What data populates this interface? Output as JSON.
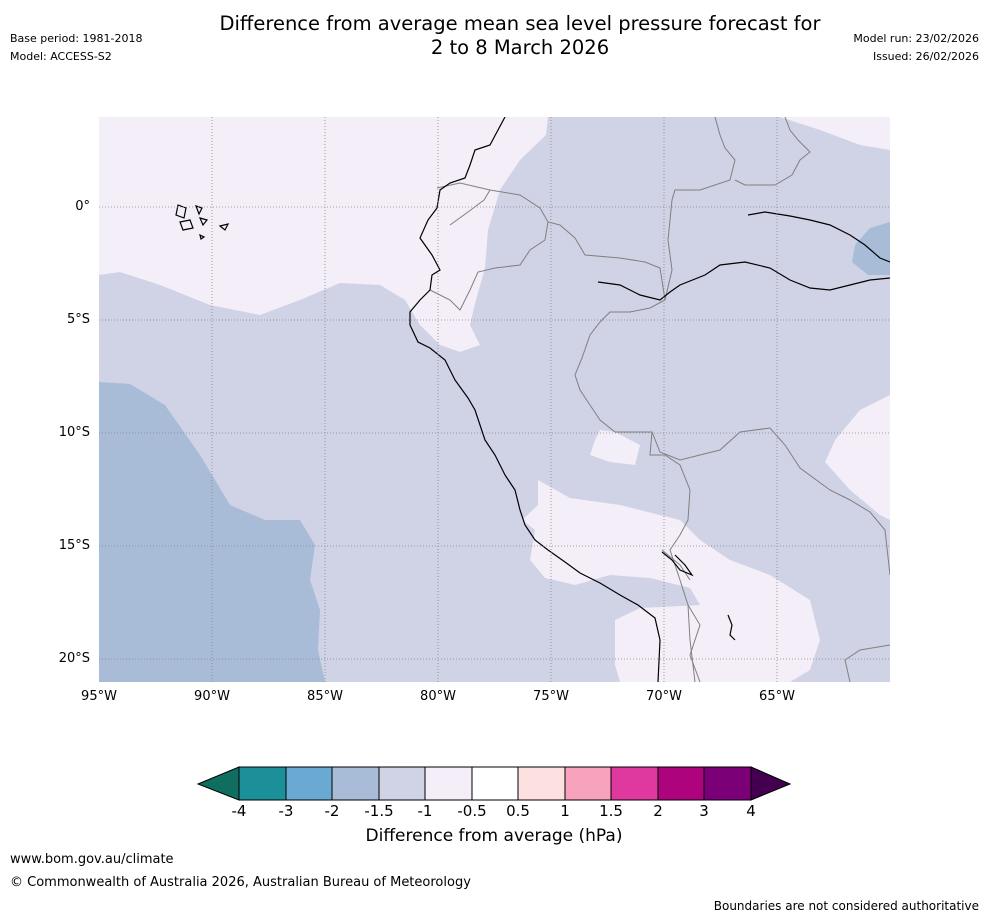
{
  "header": {
    "base_period": "Base period: 1981-2018",
    "model": "Model: ACCESS-S2",
    "title_line1": "Difference from average mean sea level pressure forecast for",
    "title_line2": "2 to 8 March 2026",
    "model_run": "Model run: 23/02/2026",
    "issued": "Issued: 26/02/2026"
  },
  "map": {
    "lat_labels": [
      "0°",
      "5°S",
      "10°S",
      "15°S",
      "20°S"
    ],
    "lon_labels": [
      "95°W",
      "90°W",
      "85°W",
      "80°W",
      "75°W",
      "70°W",
      "65°W"
    ],
    "colors": {
      "land_border": "#000000",
      "country_border": "#808080",
      "gridline": "#888888"
    }
  },
  "colorbar": {
    "title": "Difference from average (hPa)",
    "tick_labels": [
      "-4",
      "-3",
      "-2",
      "-1.5",
      "-1",
      "-0.5",
      "0.5",
      "1",
      "1.5",
      "2",
      "3",
      "4"
    ],
    "colors": [
      "#0f6e5f",
      "#1b9099",
      "#6aaad2",
      "#a8bcd8",
      "#d0d2e6",
      "#f3eef7",
      "#ffffff",
      "#fde0e0",
      "#f7a3bd",
      "#df389e",
      "#ad047e",
      "#7b0078",
      "#430050"
    ]
  },
  "footer": {
    "website": "www.bom.gov.au/climate",
    "copyright": "© Commonwealth of Australia 2026, Australian Bureau of Meteorology",
    "disclaimer": "Boundaries are not considered authoritative"
  }
}
